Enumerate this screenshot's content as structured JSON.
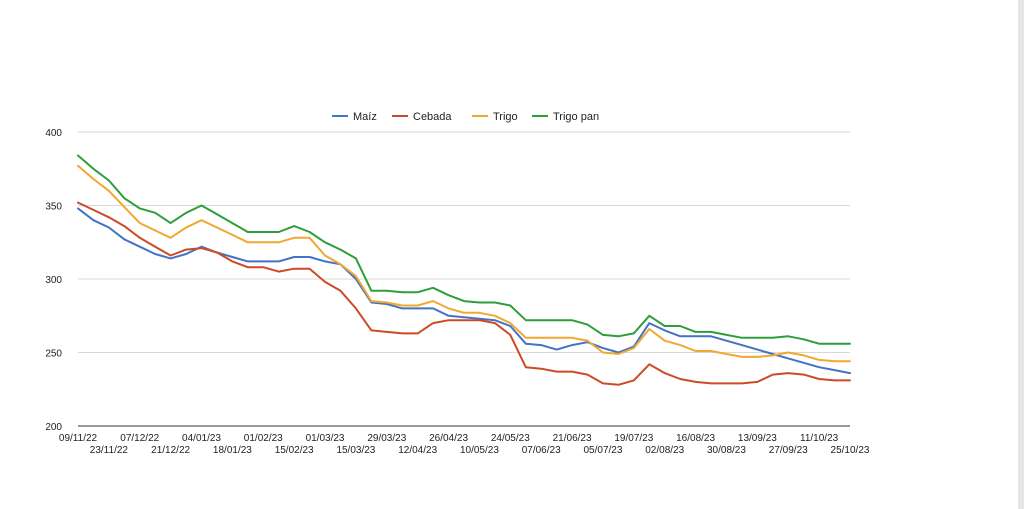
{
  "chart_data": {
    "type": "line",
    "title": "",
    "xlabel": "",
    "ylabel": "",
    "ylim": [
      200,
      400
    ],
    "yticks": [
      200,
      250,
      300,
      350,
      400
    ],
    "grid": true,
    "legend_position": "top",
    "x_tick_labels_top": [
      "09/11/22",
      "07/12/22",
      "04/01/23",
      "01/02/23",
      "01/03/23",
      "29/03/23",
      "26/04/23",
      "24/05/23",
      "21/06/23",
      "19/07/23",
      "16/08/23",
      "13/09/23",
      "11/10/23"
    ],
    "x_tick_labels_bottom": [
      "23/11/22",
      "21/12/22",
      "18/01/23",
      "15/02/23",
      "15/03/23",
      "12/04/23",
      "10/05/23",
      "07/06/23",
      "05/07/23",
      "02/08/23",
      "30/08/23",
      "27/09/23",
      "25/10/23"
    ],
    "x": [
      "09/11/22",
      "16/11/22",
      "23/11/22",
      "30/11/22",
      "07/12/22",
      "14/12/22",
      "21/12/22",
      "28/12/22",
      "04/01/23",
      "11/01/23",
      "18/01/23",
      "25/01/23",
      "01/02/23",
      "08/02/23",
      "15/02/23",
      "22/02/23",
      "01/03/23",
      "08/03/23",
      "15/03/23",
      "22/03/23",
      "29/03/23",
      "05/04/23",
      "12/04/23",
      "19/04/23",
      "26/04/23",
      "03/05/23",
      "10/05/23",
      "17/05/23",
      "24/05/23",
      "31/05/23",
      "07/06/23",
      "14/06/23",
      "21/06/23",
      "28/06/23",
      "05/07/23",
      "12/07/23",
      "19/07/23",
      "26/07/23",
      "02/08/23",
      "09/08/23",
      "16/08/23",
      "23/08/23",
      "30/08/23",
      "06/09/23",
      "13/09/23",
      "20/09/23",
      "27/09/23",
      "04/10/23",
      "11/10/23",
      "18/10/23",
      "25/10/23"
    ],
    "series": [
      {
        "name": "Maíz",
        "color": "#4472c4",
        "values": [
          348,
          340,
          335,
          327,
          322,
          317,
          314,
          317,
          322,
          318,
          315,
          312,
          312,
          312,
          315,
          315,
          312,
          310,
          300,
          284,
          283,
          280,
          280,
          280,
          275,
          274,
          273,
          272,
          268,
          256,
          255,
          252,
          255,
          257,
          253,
          250,
          254,
          270,
          265,
          261,
          261,
          261,
          258,
          255,
          252,
          249,
          246,
          243,
          240,
          238,
          236
        ]
      },
      {
        "name": "Cebada",
        "color": "#cc4b26",
        "values": [
          352,
          347,
          342,
          336,
          328,
          322,
          316,
          320,
          321,
          318,
          312,
          308,
          308,
          305,
          307,
          307,
          298,
          292,
          280,
          265,
          264,
          263,
          263,
          270,
          272,
          272,
          272,
          270,
          262,
          240,
          239,
          237,
          237,
          235,
          229,
          228,
          231,
          242,
          236,
          232,
          230,
          229,
          229,
          229,
          230,
          235,
          236,
          235,
          232,
          231,
          231
        ]
      },
      {
        "name": "Trigo",
        "color": "#f0a830",
        "values": [
          377,
          368,
          360,
          349,
          338,
          333,
          328,
          335,
          340,
          335,
          330,
          325,
          325,
          325,
          328,
          328,
          316,
          310,
          302,
          285,
          284,
          282,
          282,
          285,
          280,
          277,
          277,
          275,
          270,
          260,
          260,
          260,
          260,
          258,
          250,
          249,
          253,
          266,
          258,
          255,
          251,
          251,
          249,
          247,
          247,
          248,
          250,
          248,
          245,
          244,
          244
        ]
      },
      {
        "name": "Trigo pan",
        "color": "#2e9e3a",
        "values": [
          384,
          375,
          367,
          355,
          348,
          345,
          338,
          345,
          350,
          344,
          338,
          332,
          332,
          332,
          336,
          332,
          325,
          320,
          314,
          292,
          292,
          291,
          291,
          294,
          289,
          285,
          284,
          284,
          282,
          272,
          272,
          272,
          272,
          269,
          262,
          261,
          263,
          275,
          268,
          268,
          264,
          264,
          262,
          260,
          260,
          260,
          261,
          259,
          256,
          256,
          256
        ]
      }
    ]
  }
}
